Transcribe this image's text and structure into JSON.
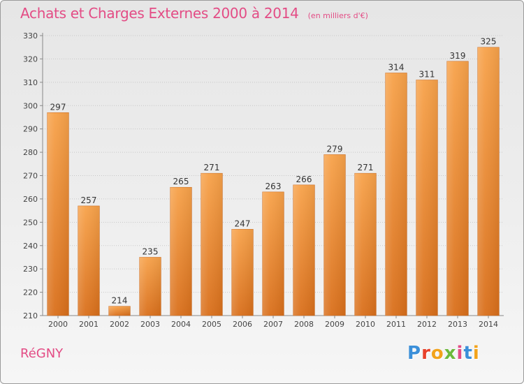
{
  "header": {
    "title": "Achats et Charges Externes 2000 à 2014",
    "unit": "(en milliers d'€)"
  },
  "footer": {
    "place": "RéGNY",
    "brand_letters": [
      "P",
      "r",
      "o",
      "x",
      "i",
      "t",
      "i"
    ],
    "brand_colors": [
      "#3b8fd9",
      "#e8412a",
      "#f2a31b",
      "#6cba3c",
      "#e34c85",
      "#3b8fd9",
      "#f2a31b"
    ]
  },
  "chart_data": {
    "type": "bar",
    "title": "Achats et Charges Externes 2000 à 2014",
    "categories": [
      "2000",
      "2001",
      "2002",
      "2003",
      "2004",
      "2005",
      "2006",
      "2007",
      "2008",
      "2009",
      "2010",
      "2011",
      "2012",
      "2013",
      "2014"
    ],
    "values": [
      297,
      257,
      214,
      235,
      265,
      271,
      247,
      263,
      266,
      279,
      271,
      314,
      311,
      319,
      325
    ],
    "ylim": [
      210,
      330
    ],
    "yticks": [
      210,
      220,
      230,
      240,
      250,
      260,
      270,
      280,
      290,
      300,
      310,
      320,
      330
    ],
    "grid": true,
    "bar_color": "#f0923a"
  }
}
